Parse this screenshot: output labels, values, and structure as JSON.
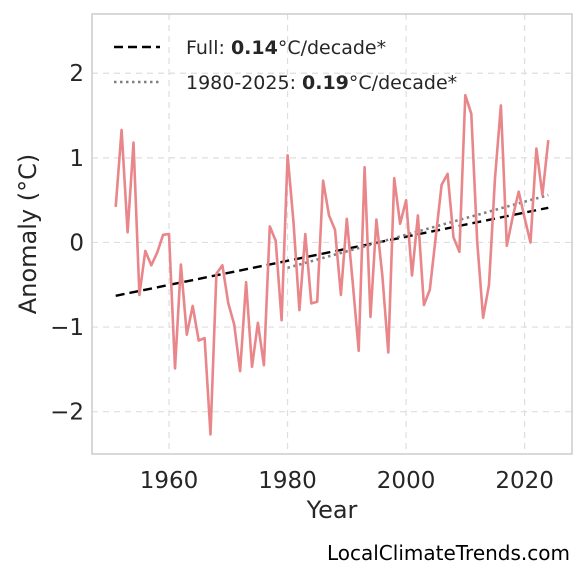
{
  "chart_data": {
    "type": "line",
    "title": "",
    "xlabel": "Year",
    "ylabel": "Anomaly (°C)",
    "xlim": [
      1947,
      2028
    ],
    "ylim": [
      -2.5,
      2.7
    ],
    "xticks": [
      1960,
      1980,
      2000,
      2020
    ],
    "xtick_labels": [
      "1960",
      "1980",
      "2000",
      "2020"
    ],
    "yticks": [
      2,
      1,
      0,
      -1,
      -2
    ],
    "ytick_labels": [
      "2",
      "1",
      "0",
      "−1",
      "−2"
    ],
    "grid": true,
    "legend_placement": "top-left",
    "series": [
      {
        "color": "#e8868a",
        "x": [
          1951,
          1952,
          1953,
          1954,
          1955,
          1956,
          1957,
          1958,
          1959,
          1960,
          1961,
          1962,
          1963,
          1964,
          1965,
          1966,
          1967,
          1968,
          1969,
          1970,
          1971,
          1972,
          1973,
          1974,
          1975,
          1976,
          1977,
          1978,
          1979,
          1980,
          1981,
          1982,
          1983,
          1984,
          1985,
          1986,
          1987,
          1988,
          1989,
          1990,
          1991,
          1992,
          1993,
          1994,
          1995,
          1996,
          1997,
          1998,
          1999,
          2000,
          2001,
          2002,
          2003,
          2004,
          2005,
          2006,
          2007,
          2008,
          2009,
          2010,
          2011,
          2012,
          2013,
          2014,
          2015,
          2016,
          2017,
          2018,
          2019,
          2020,
          2021,
          2022,
          2023,
          2024
        ],
        "y": [
          0.42,
          1.33,
          0.12,
          1.18,
          -0.62,
          -0.1,
          -0.27,
          -0.12,
          0.09,
          0.1,
          -1.49,
          -0.26,
          -1.09,
          -0.75,
          -1.16,
          -1.13,
          -2.27,
          -0.37,
          -0.27,
          -0.72,
          -0.97,
          -1.52,
          -0.47,
          -1.47,
          -0.95,
          -1.45,
          0.19,
          0.02,
          -0.92,
          1.03,
          0.24,
          -0.8,
          0.1,
          -0.72,
          -0.7,
          0.73,
          0.32,
          0.15,
          -0.62,
          0.28,
          -0.47,
          -1.28,
          0.89,
          -0.88,
          0.27,
          -0.4,
          -1.3,
          0.76,
          0.22,
          0.5,
          -0.39,
          0.32,
          -0.74,
          -0.56,
          0.06,
          0.68,
          0.81,
          0.06,
          -0.11,
          1.74,
          1.52,
          0.01,
          -0.89,
          -0.5,
          0.76,
          1.62,
          -0.04,
          0.3,
          0.6,
          0.29,
          0.0,
          1.11,
          0.56,
          1.21
        ]
      }
    ],
    "trends": [
      {
        "label_prefix": "Full: ",
        "label_value": "0.14",
        "label_suffix": "°C/decade*",
        "style": "dashed",
        "color": "#000000",
        "x": [
          1951,
          2024
        ],
        "y": [
          -0.63,
          0.41
        ]
      },
      {
        "label_prefix": "1980-2025: ",
        "label_value": "0.19",
        "label_suffix": "°C/decade*",
        "style": "dotted",
        "color": "#808080",
        "x": [
          1980,
          2024
        ],
        "y": [
          -0.3,
          0.56
        ]
      }
    ]
  },
  "watermark": "LocalClimateTrends.com"
}
